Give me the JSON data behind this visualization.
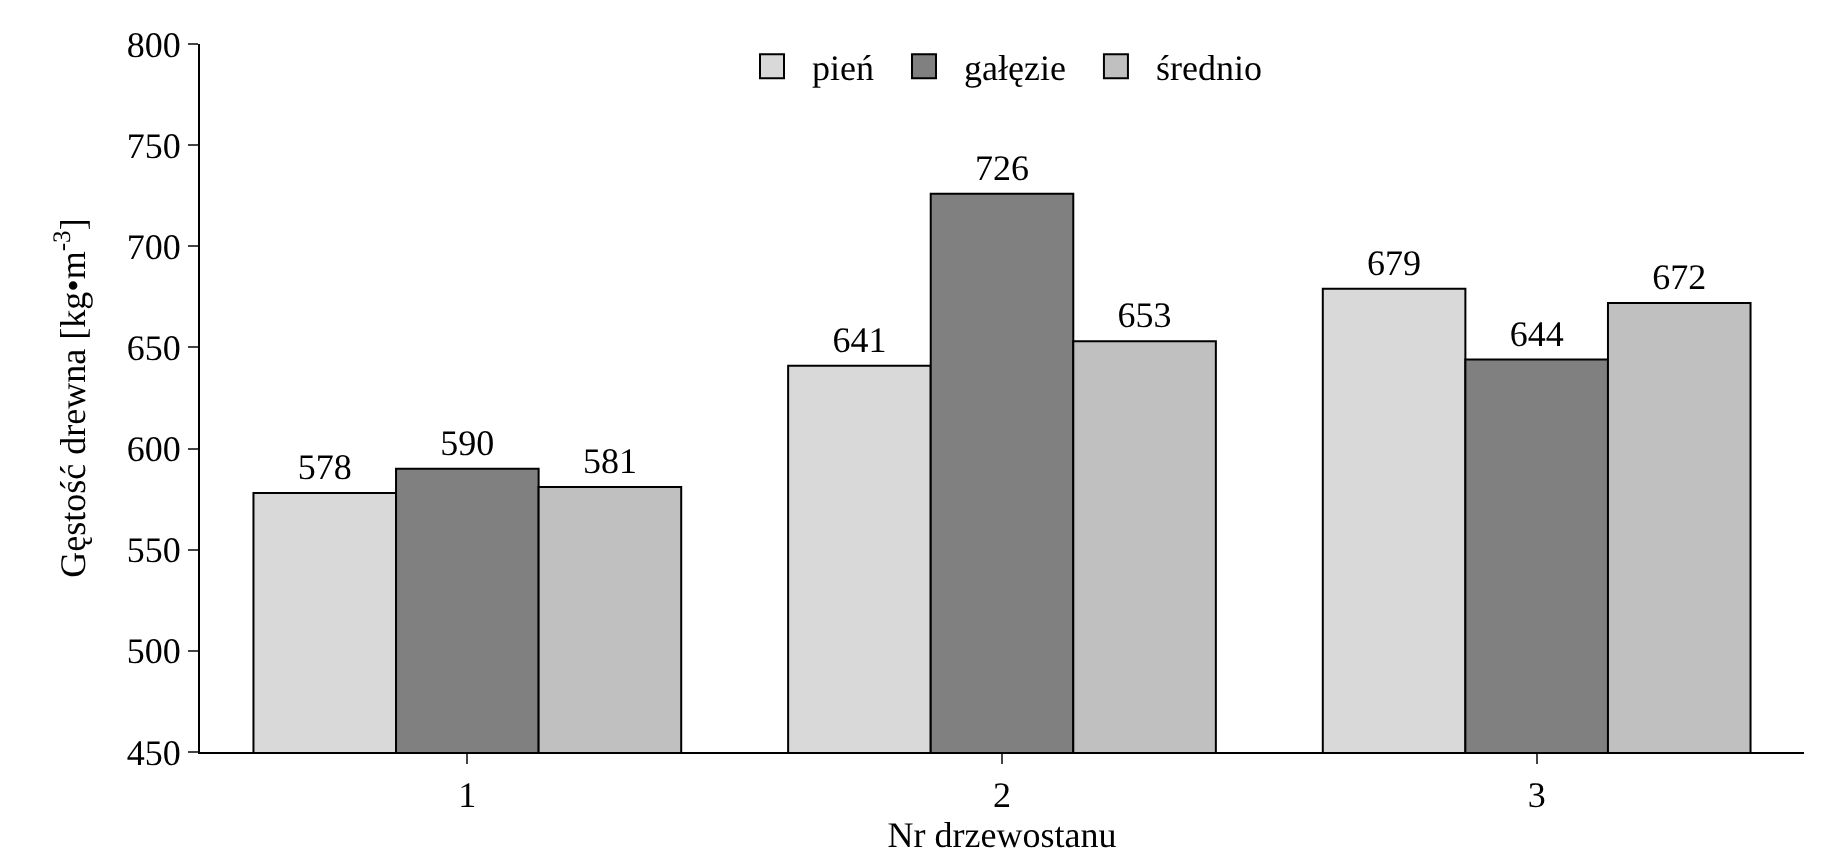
{
  "chart_data": {
    "type": "bar",
    "xlabel": "Nr drzewostanu",
    "ylabel": "Gęstość drewna [kg•m$^{-3}$]",
    "categories": [
      "1",
      "2",
      "3"
    ],
    "series": [
      {
        "name": "pień",
        "color": "#d9d9d9",
        "values": [
          578,
          641,
          679
        ]
      },
      {
        "name": "gałęzie",
        "color": "#808080",
        "values": [
          590,
          726,
          644
        ]
      },
      {
        "name": "średnio",
        "color": "#c0c0c0",
        "values": [
          581,
          653,
          672
        ]
      }
    ],
    "ylim": [
      450,
      800
    ],
    "yticks": [
      450,
      500,
      550,
      600,
      650,
      700,
      750,
      800
    ],
    "legend": "top",
    "data_labels": true
  }
}
